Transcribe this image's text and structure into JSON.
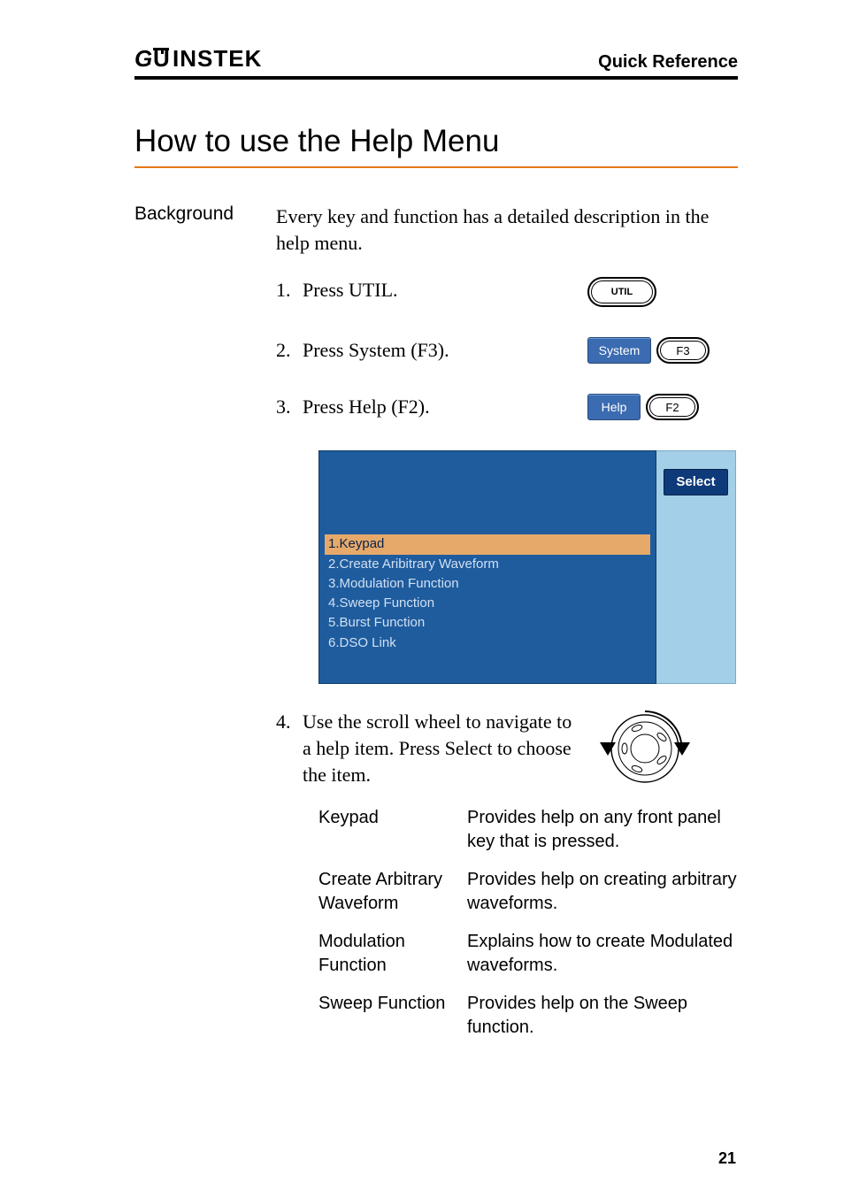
{
  "header": {
    "logo_text": "GWINSTEK",
    "right": "Quick Reference"
  },
  "title": "How to use the Help Menu",
  "background": {
    "label": "Background",
    "text": "Every key and function has a detailed description in the help menu."
  },
  "steps": [
    {
      "num": "1.",
      "text": "Press UTIL.",
      "util_label": "UTIL"
    },
    {
      "num": "2.",
      "text": "Press System (F3).",
      "soft_label": "System",
      "fkey_label": "F3"
    },
    {
      "num": "3.",
      "text": "Press Help (F2).",
      "soft_label": "Help",
      "fkey_label": "F2"
    }
  ],
  "display": {
    "side_button": "Select",
    "menu_items": [
      "1.Keypad",
      "2.Create Aribitrary Waveform",
      "3.Modulation Function",
      "4.Sweep Function",
      "5.Burst Function",
      "6.DSO Link"
    ],
    "selected_index": 0,
    "colors": {
      "panel_bg": "#1f5c9e",
      "side_bg": "#a4cfe8",
      "side_btn_bg": "#0e3a7a",
      "selected_bg": "#e6a96a",
      "text": "#cfe0f2"
    }
  },
  "step4": {
    "num": "4.",
    "text": "Use the scroll wheel to navigate to a help item. Press Select to choose the item."
  },
  "descriptions": [
    {
      "term": "Keypad",
      "def": "Provides help on any front panel key that is pressed."
    },
    {
      "term": "Create Arbitrary Waveform",
      "def": "Provides help on creating arbitrary waveforms."
    },
    {
      "term": "Modulation Function",
      "def": "Explains how to create Modulated waveforms."
    },
    {
      "term": "Sweep Function",
      "def": "Provides help on the Sweep function."
    }
  ],
  "page_number": "21",
  "colors": {
    "accent_orange": "#e67817",
    "soft_btn_bg": "#3b6bb0"
  }
}
